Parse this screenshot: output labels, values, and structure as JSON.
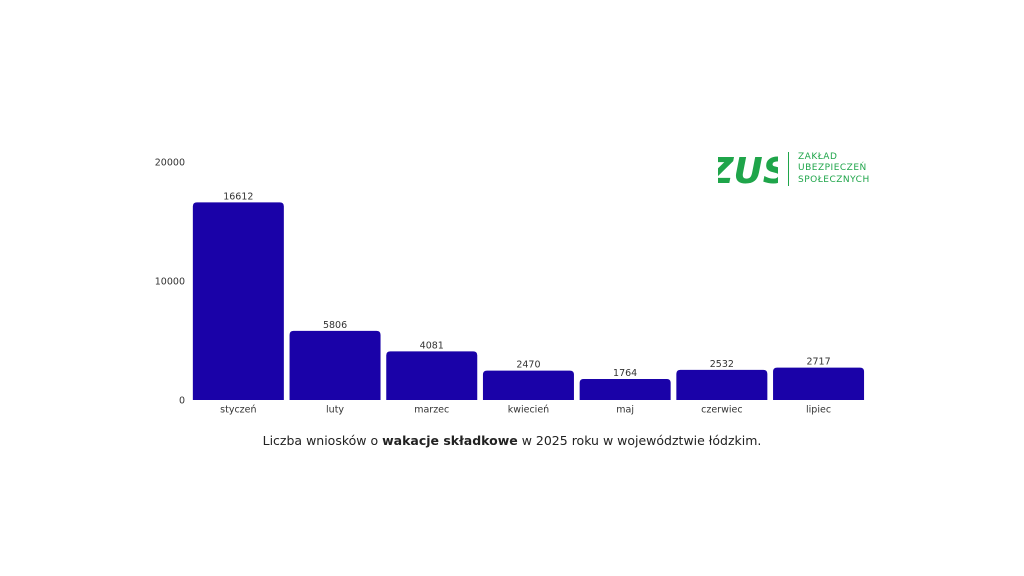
{
  "chart_data": {
    "type": "bar",
    "categories": [
      "styczeń",
      "luty",
      "marzec",
      "kwiecień",
      "maj",
      "czerwiec",
      "lipiec"
    ],
    "values": [
      16612,
      5806,
      4081,
      2470,
      1764,
      2532,
      2717
    ],
    "ylim": [
      0,
      20000
    ],
    "yticks": [
      "0",
      "10000",
      "20000"
    ],
    "data_labels": true,
    "grid": false,
    "bar_color": "#1a02a8"
  },
  "caption": {
    "prefix": "Liczba wniosków o ",
    "bold": "wakacje składkowe",
    "suffix": " w 2025 roku w województwie łódzkim."
  },
  "logo": {
    "mark": "ZUS",
    "line1": "ZAKŁAD",
    "line2": "UBEZPIECZEŃ",
    "line3": "SPOŁECZNYCH",
    "color": "#1fa54a"
  }
}
